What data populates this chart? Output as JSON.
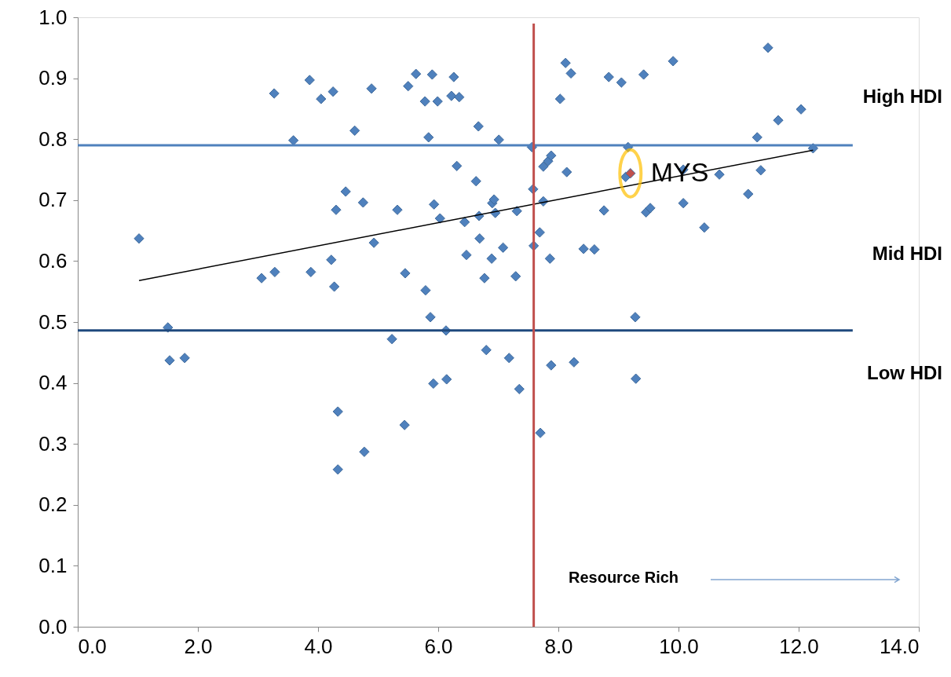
{
  "chart_data": {
    "type": "scatter",
    "xlim": [
      0,
      14
    ],
    "xticks": [
      {
        "value": 0,
        "label": "0.0"
      },
      {
        "value": 2,
        "label": "2.0"
      },
      {
        "value": 4,
        "label": "4.0"
      },
      {
        "value": 6,
        "label": "6.0"
      },
      {
        "value": 8,
        "label": "8.0"
      },
      {
        "value": 10,
        "label": "10.0"
      },
      {
        "value": 12,
        "label": "12.0"
      },
      {
        "value": 14,
        "label": "14.0"
      }
    ],
    "ylim": [
      0,
      1
    ],
    "yticks": [
      {
        "value": 0,
        "label": "0.0"
      },
      {
        "value": 0.1,
        "label": "0.1"
      },
      {
        "value": 0.2,
        "label": "0.2"
      },
      {
        "value": 0.3,
        "label": "0.3"
      },
      {
        "value": 0.4,
        "label": "0.4"
      },
      {
        "value": 0.5,
        "label": "0.5"
      },
      {
        "value": 0.6,
        "label": "0.6"
      },
      {
        "value": 0.7,
        "label": "0.7"
      },
      {
        "value": 0.8,
        "label": "0.8"
      },
      {
        "value": 0.9,
        "label": "0.9"
      },
      {
        "value": 1,
        "label": "1.0"
      }
    ],
    "grid": false,
    "marker": "diamond",
    "series": [
      {
        "color": "#4f81bd",
        "x": [
          1.02,
          1.5,
          1.53,
          1.78,
          3.06,
          3.28,
          3.27,
          3.59,
          3.86,
          3.88,
          4.05,
          4.25,
          4.22,
          4.27,
          4.3,
          4.33,
          4.33,
          4.46,
          4.61,
          4.75,
          4.77,
          4.89,
          4.93,
          5.23,
          5.32,
          5.44,
          5.45,
          5.5,
          5.63,
          5.78,
          5.79,
          5.84,
          5.87,
          5.9,
          5.92,
          5.93,
          5.99,
          6.03,
          6.13,
          6.14,
          6.26,
          6.22,
          6.35,
          6.31,
          6.44,
          6.47,
          6.67,
          6.63,
          6.68,
          6.69,
          6.77,
          6.8,
          6.9,
          6.93,
          6.89,
          6.95,
          7.01,
          7.08,
          7.18,
          7.29,
          7.31,
          7.35,
          7.56,
          7.58,
          7.59,
          7.69,
          7.7,
          7.75,
          7.75,
          7.83,
          7.88,
          7.86,
          7.88,
          8.03,
          8.12,
          8.21,
          8.14,
          8.26,
          8.42,
          8.6,
          8.76,
          8.84,
          9.05,
          9.16,
          9.12,
          9.28,
          9.29,
          9.42,
          9.46,
          9.53,
          9.91,
          10.08,
          10.08,
          10.43,
          10.68,
          11.16,
          11.31,
          11.37,
          11.49,
          11.66,
          12.04,
          12.24
        ],
        "values": [
          0.637,
          0.491,
          0.437,
          0.441,
          0.572,
          0.582,
          0.875,
          0.798,
          0.897,
          0.582,
          0.866,
          0.878,
          0.602,
          0.558,
          0.684,
          0.353,
          0.258,
          0.714,
          0.814,
          0.696,
          0.287,
          0.883,
          0.63,
          0.472,
          0.684,
          0.331,
          0.58,
          0.887,
          0.907,
          0.862,
          0.552,
          0.803,
          0.508,
          0.906,
          0.399,
          0.693,
          0.862,
          0.67,
          0.486,
          0.406,
          0.902,
          0.871,
          0.869,
          0.756,
          0.664,
          0.61,
          0.821,
          0.731,
          0.674,
          0.637,
          0.572,
          0.454,
          0.695,
          0.701,
          0.604,
          0.679,
          0.799,
          0.622,
          0.441,
          0.575,
          0.682,
          0.39,
          0.787,
          0.718,
          0.625,
          0.647,
          0.318,
          0.698,
          0.755,
          0.764,
          0.773,
          0.604,
          0.429,
          0.866,
          0.925,
          0.908,
          0.746,
          0.434,
          0.62,
          0.619,
          0.683,
          0.902,
          0.893,
          0.787,
          0.738,
          0.508,
          0.407,
          0.906,
          0.68,
          0.687,
          0.928,
          0.75,
          0.695,
          0.655,
          0.742,
          0.71,
          0.803,
          0.749,
          0.95,
          0.831,
          0.849,
          0.785
        ]
      },
      {
        "color": "#c0504d",
        "x": [
          9.2
        ],
        "values": [
          0.744
        ]
      },
      {
        "type": "line",
        "marker": "none",
        "color": "#000000",
        "x": [
          1.02,
          12.24
        ],
        "values": [
          0.568,
          0.782
        ]
      }
    ],
    "ref_lines": [
      {
        "axis": "y",
        "value": 0.79,
        "color": "#4f81bd"
      },
      {
        "axis": "y",
        "value": 0.486,
        "color": "#1f497d"
      },
      {
        "axis": "x",
        "value": 7.59,
        "color": "#c0504d"
      }
    ],
    "annotations": [
      "High HDI",
      "Mid HDI",
      "Low HDI",
      "Resource Rich",
      {
        "text": "MYS",
        "x": 9.2,
        "y": 0.744
      }
    ]
  }
}
